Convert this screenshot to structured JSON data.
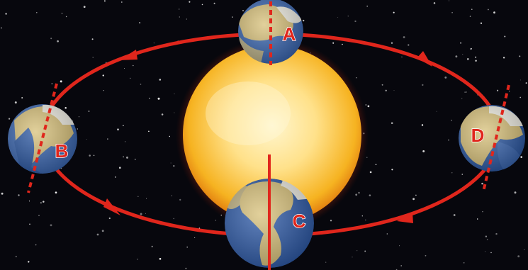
{
  "labels": {
    "a": "A",
    "b": "B",
    "c": "C",
    "d": "D"
  },
  "colors": {
    "space": "#07070d",
    "orbit": "#e0261c",
    "axis": "#e0261c",
    "label_text": "#e0261c",
    "sun_core": "#ffe79a",
    "sun_edge": "#f2a60f",
    "ocean": "#2f5ba8",
    "land": "#d8c17a",
    "ice": "#f2f0e6"
  },
  "icons": {
    "sun": "sun-icon",
    "earth": "earth-globe-icon",
    "orbit_arrow": "arrow-head-icon"
  }
}
